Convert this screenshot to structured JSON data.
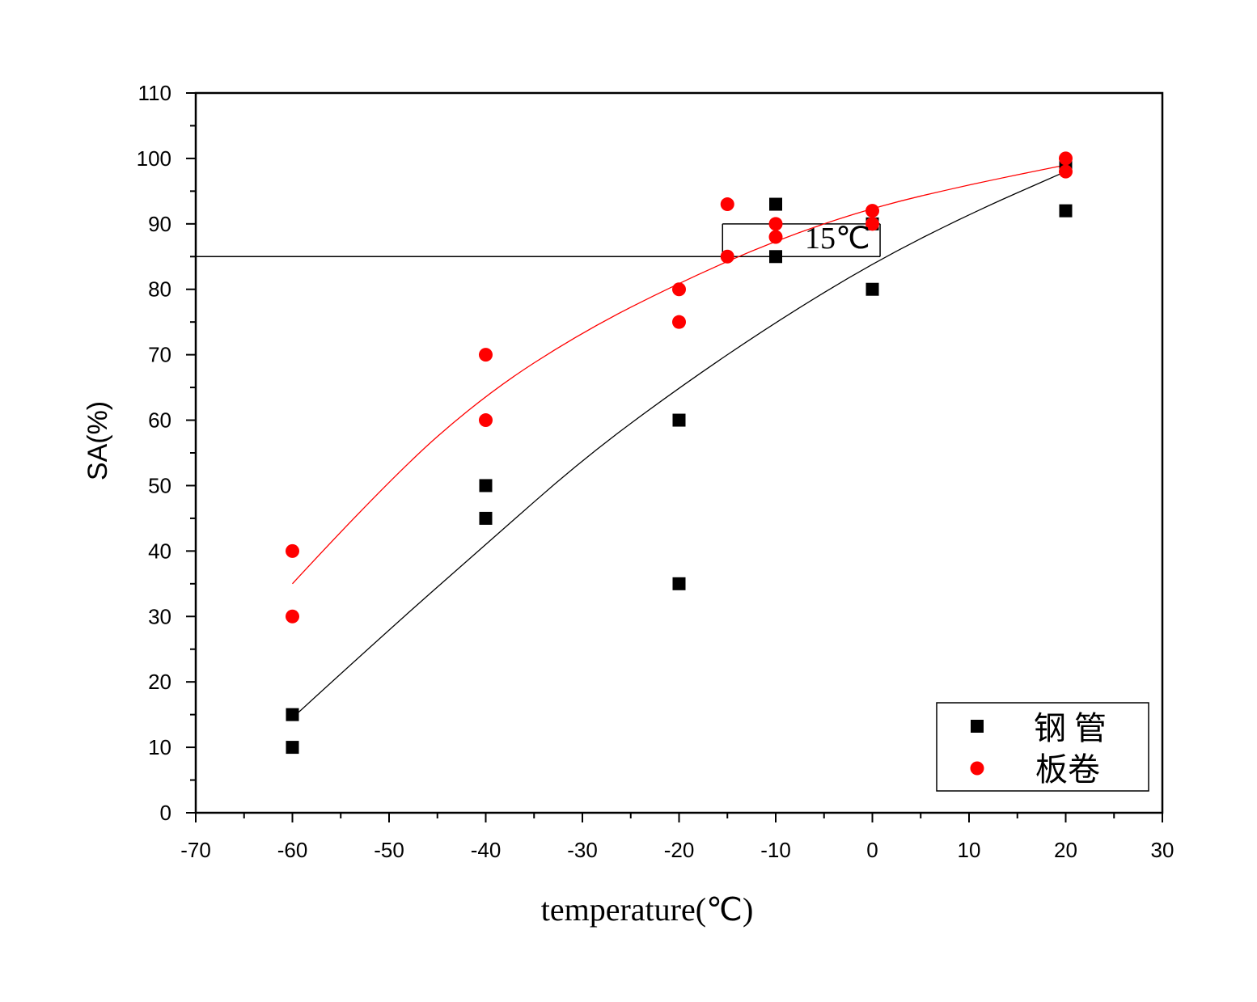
{
  "chart_data": {
    "type": "scatter",
    "xlabel": "temperature(℃)",
    "ylabel": "SA(%)",
    "xlim": [
      -70,
      30
    ],
    "ylim": [
      0,
      110
    ],
    "xticks": [
      -70,
      -60,
      -50,
      -40,
      -30,
      -20,
      -10,
      0,
      10,
      20,
      30
    ],
    "yticks": [
      0,
      10,
      20,
      30,
      40,
      50,
      60,
      70,
      80,
      90,
      100,
      110
    ],
    "grid": false,
    "legend_position": "bottom-right",
    "series": [
      {
        "name": "钢 管",
        "marker": "square",
        "color": "#000000",
        "x": [
          -60,
          -60,
          -40,
          -40,
          -20,
          -20,
          -10,
          -10,
          0,
          0,
          20,
          20
        ],
        "y": [
          15,
          10,
          50,
          45,
          60,
          35,
          93,
          85,
          80,
          90,
          92,
          99
        ],
        "fit_x": [
          -60,
          -50,
          -40,
          -30,
          -20,
          -10,
          0,
          10,
          20
        ],
        "fit_y": [
          14.5,
          28,
          41,
          54,
          65,
          75,
          84,
          91.5,
          98
        ]
      },
      {
        "name": "板卷",
        "marker": "circle",
        "color": "#ff0000",
        "x": [
          -60,
          -60,
          -40,
          -40,
          -20,
          -20,
          -15,
          -15,
          -10,
          -10,
          0,
          0,
          20,
          20
        ],
        "y": [
          40,
          30,
          70,
          60,
          80,
          75,
          93,
          85,
          90,
          88,
          92,
          90,
          100,
          98
        ],
        "fit_x": [
          -60,
          -50,
          -40,
          -30,
          -20,
          -10,
          0,
          10,
          20
        ],
        "fit_y": [
          35,
          51,
          64,
          73.5,
          81,
          87.5,
          92.5,
          96,
          99
        ]
      }
    ],
    "annotations": {
      "reference_level": 85,
      "bracket_x": [
        -15.5,
        0.8
      ],
      "bracket_top": 90,
      "label": "15℃"
    }
  }
}
